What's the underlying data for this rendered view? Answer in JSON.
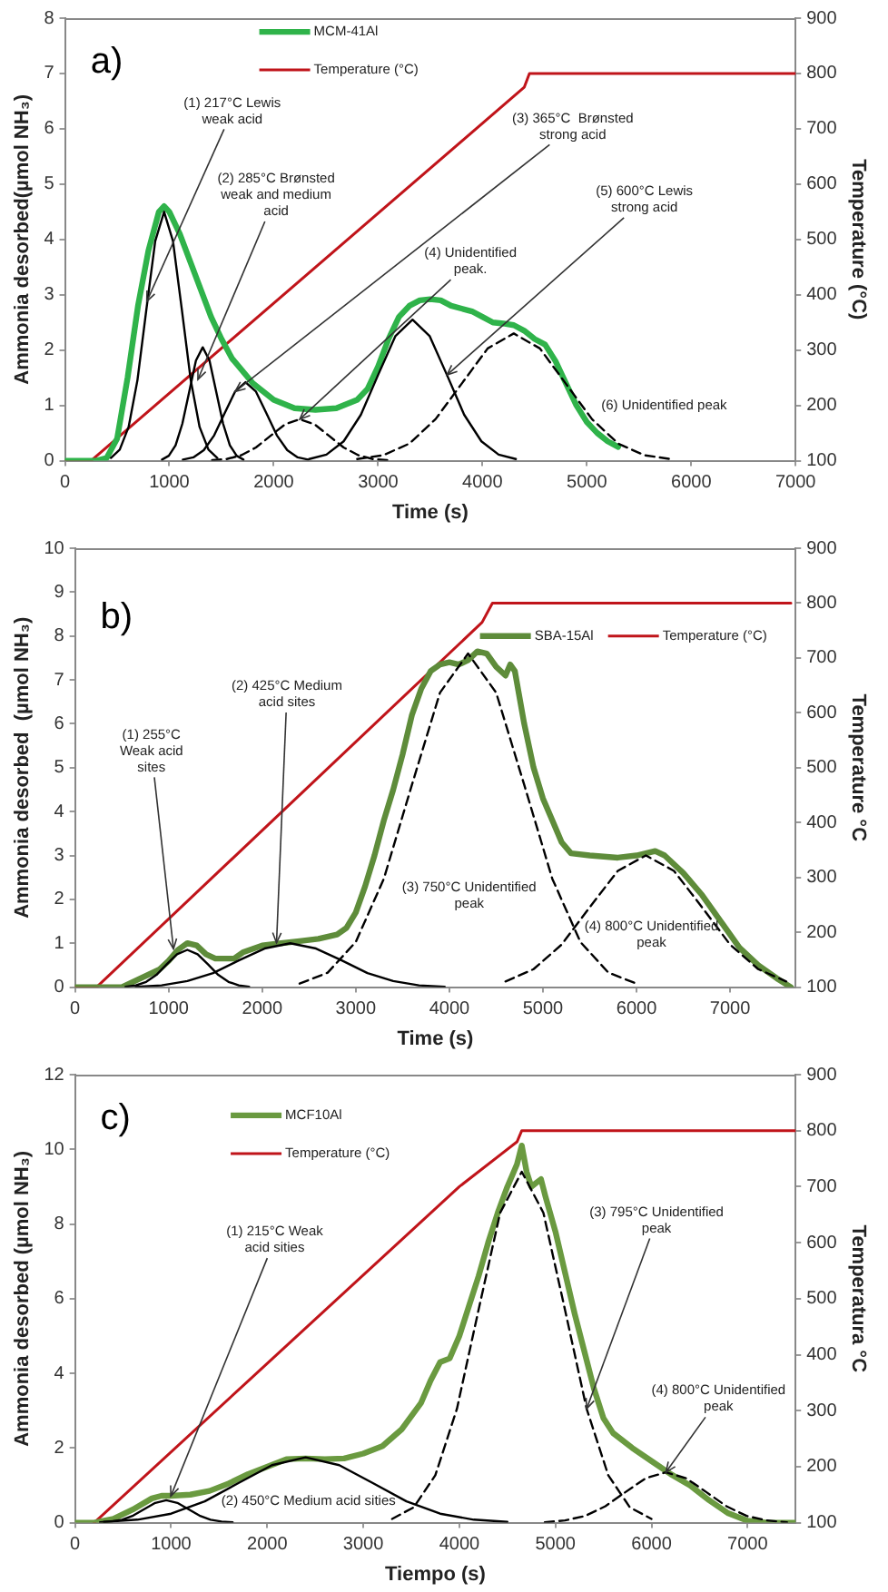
{
  "chart_data": [
    {
      "type": "line",
      "title": "a)",
      "xlabel": "Time (s)",
      "ylabel": "Ammonia desorbed(µmol NH₃)",
      "y2label": "Temperature (°C)",
      "xlim": [
        0,
        7000
      ],
      "xticks": [
        0,
        1000,
        2000,
        3000,
        4000,
        5000,
        6000,
        7000
      ],
      "ylim": [
        0,
        8
      ],
      "yticks": [
        0,
        1,
        2,
        3,
        4,
        5,
        6,
        7,
        8
      ],
      "y2lim": [
        100,
        900
      ],
      "y2ticks": [
        100,
        200,
        300,
        400,
        500,
        600,
        700,
        800,
        900
      ],
      "grid": false,
      "legend": "top",
      "marker": "none",
      "line_style": "solid",
      "series": [
        {
          "name": "MCM-41Al",
          "color": "#2fb34a",
          "x": [
            0,
            300,
            400,
            500,
            600,
            700,
            800,
            900,
            950,
            1000,
            1100,
            1200,
            1300,
            1400,
            1500,
            1600,
            1800,
            2000,
            2200,
            2400,
            2600,
            2800,
            2900,
            3000,
            3100,
            3200,
            3300,
            3400,
            3500,
            3600,
            3700,
            3800,
            3900,
            4000,
            4100,
            4200,
            4300,
            4400,
            4500,
            4600,
            4700,
            4800,
            4900,
            5000,
            5100,
            5200,
            5300
          ],
          "values": [
            0,
            0,
            0.05,
            0.4,
            1.5,
            2.8,
            3.8,
            4.5,
            4.6,
            4.5,
            4.1,
            3.6,
            3.1,
            2.6,
            2.2,
            1.85,
            1.4,
            1.1,
            0.95,
            0.92,
            0.95,
            1.1,
            1.3,
            1.7,
            2.2,
            2.6,
            2.8,
            2.9,
            2.92,
            2.9,
            2.8,
            2.75,
            2.7,
            2.6,
            2.5,
            2.48,
            2.45,
            2.35,
            2.2,
            2.1,
            1.8,
            1.4,
            1.0,
            0.7,
            0.5,
            0.35,
            0.25
          ]
        },
        {
          "name": "Temperature (°C)",
          "color": "#c0141a",
          "axis": "y2",
          "x": [
            0,
            250,
            4400,
            4450,
            7000
          ],
          "values": [
            100,
            100,
            775,
            800,
            800
          ]
        },
        {
          "color": "#000000",
          "x": [
            440,
            525,
            610,
            695,
            780,
            865,
            950,
            1035,
            1120,
            1205,
            1290,
            1375,
            1460
          ],
          "values": [
            0.05,
            0.2,
            0.61,
            1.46,
            2.73,
            3.97,
            4.5,
            3.97,
            2.73,
            1.46,
            0.61,
            0.2,
            0.05
          ]
        },
        {
          "color": "#000000",
          "x": [
            930,
            995,
            1060,
            1125,
            1190,
            1255,
            1320,
            1385,
            1450,
            1515,
            1580,
            1645,
            1710
          ],
          "values": [
            0.02,
            0.09,
            0.28,
            0.67,
            1.24,
            1.81,
            2.05,
            1.81,
            1.24,
            0.67,
            0.28,
            0.09,
            0.02
          ]
        },
        {
          "color": "#000000",
          "x": [
            1130,
            1230,
            1330,
            1430,
            1530,
            1630,
            1730,
            1830,
            1930,
            2030,
            2130,
            2230,
            2330
          ],
          "values": [
            0.02,
            0.06,
            0.19,
            0.46,
            0.86,
            1.25,
            1.42,
            1.25,
            0.86,
            0.46,
            0.19,
            0.06,
            0.02
          ]
        },
        {
          "color": "#000000",
          "line_style": "dashed",
          "x": [
            1410,
            1550,
            1690,
            1830,
            1970,
            2110,
            2250,
            2390,
            2530,
            2670,
            2810,
            2950,
            3090
          ],
          "values": [
            0.01,
            0.03,
            0.1,
            0.24,
            0.45,
            0.66,
            0.75,
            0.66,
            0.45,
            0.24,
            0.1,
            0.03,
            0.01
          ]
        },
        {
          "color": "#000000",
          "x": [
            2340,
            2505,
            2670,
            2835,
            3000,
            3165,
            3330,
            3495,
            3660,
            3825,
            3990,
            4155,
            4320
          ],
          "values": [
            0.03,
            0.11,
            0.35,
            0.83,
            1.55,
            2.25,
            2.55,
            2.25,
            1.55,
            0.83,
            0.35,
            0.11,
            0.03
          ]
        },
        {
          "color": "#000000",
          "line_style": "dashed",
          "x": [
            2800,
            3050,
            3300,
            3550,
            3800,
            4050,
            4300,
            4550,
            4800,
            5050,
            5300,
            5550,
            5800
          ],
          "values": [
            0.03,
            0.1,
            0.31,
            0.75,
            1.39,
            2.03,
            2.3,
            2.03,
            1.39,
            0.75,
            0.31,
            0.1,
            0.03
          ]
        }
      ],
      "annotations": [
        {
          "text": "(1) 217°C Lewis weak acid",
          "x": 784,
          "y": 2.88
        },
        {
          "text": "(2) 285°C Brønsted weak and medium acid",
          "x": 1274,
          "y": 1.47
        },
        {
          "text": "(3) 365°C  Brønsted strong acid",
          "x": 1630,
          "y": 1.25
        },
        {
          "text": "(4) Unidentified peak.",
          "x": 2250,
          "y": 0.75
        },
        {
          "text": "(5) 600°C Lewis strong acid",
          "x": 3660,
          "y": 1.55
        },
        "(6) Unidentified peak"
      ]
    },
    {
      "type": "line",
      "title": "b)",
      "xlabel": "Time (s)",
      "ylabel": "Ammonia desorbed  (µmol NH₃)",
      "y2label": "Temperature °C",
      "xlim": [
        0,
        7700
      ],
      "xticks": [
        0,
        1000,
        2000,
        3000,
        4000,
        5000,
        6000,
        7000
      ],
      "ylim": [
        0,
        10
      ],
      "yticks": [
        0,
        1,
        2,
        3,
        4,
        5,
        6,
        7,
        8,
        9,
        10
      ],
      "y2lim": [
        100,
        900
      ],
      "y2ticks": [
        100,
        200,
        300,
        400,
        500,
        600,
        700,
        800,
        900
      ],
      "grid": false,
      "legend": "top right",
      "marker": "none",
      "line_style": "solid",
      "series": [
        {
          "name": "SBA-15Al",
          "color": "#5e8c3a",
          "x": [
            0,
            500,
            700,
            900,
            1000,
            1100,
            1200,
            1300,
            1400,
            1500,
            1700,
            1800,
            2000,
            2200,
            2400,
            2600,
            2800,
            2900,
            3000,
            3100,
            3200,
            3300,
            3400,
            3500,
            3600,
            3700,
            3800,
            3900,
            4000,
            4100,
            4200,
            4300,
            4400,
            4500,
            4600,
            4650,
            4700,
            4800,
            4900,
            5000,
            5100,
            5200,
            5300,
            5500,
            5800,
            6000,
            6100,
            6200,
            6300,
            6500,
            6700,
            6900,
            7100,
            7300,
            7500,
            7650
          ],
          "values": [
            0,
            0,
            0.2,
            0.4,
            0.6,
            0.85,
            1.0,
            0.95,
            0.75,
            0.65,
            0.65,
            0.8,
            0.95,
            1.0,
            1.05,
            1.1,
            1.2,
            1.35,
            1.7,
            2.3,
            3.0,
            3.8,
            4.5,
            5.3,
            6.2,
            6.8,
            7.2,
            7.35,
            7.4,
            7.35,
            7.45,
            7.65,
            7.6,
            7.3,
            7.1,
            7.35,
            7.2,
            6.0,
            5.0,
            4.3,
            3.8,
            3.3,
            3.05,
            3.0,
            2.95,
            3.0,
            3.05,
            3.1,
            3.0,
            2.6,
            2.1,
            1.5,
            0.9,
            0.5,
            0.2,
            0
          ]
        },
        {
          "name": "Temperature (°C)",
          "color": "#c0141a",
          "axis": "y2",
          "x": [
            0,
            230,
            4350,
            4460,
            7650
          ],
          "values": [
            100,
            100,
            765,
            800,
            800
          ]
        },
        {
          "color": "#000000",
          "x": [
            540,
            650,
            760,
            870,
            980,
            1090,
            1200,
            1310,
            1420,
            1530,
            1640,
            1750,
            1860
          ],
          "values": [
            0.01,
            0.04,
            0.12,
            0.28,
            0.52,
            0.75,
            0.85,
            0.75,
            0.52,
            0.28,
            0.12,
            0.04,
            0.01
          ]
        },
        {
          "color": "#000000",
          "x": [
            650,
            925,
            1200,
            1475,
            1750,
            2025,
            2300,
            2575,
            2850,
            3125,
            3400,
            3675,
            3950
          ],
          "values": [
            0.01,
            0.04,
            0.14,
            0.32,
            0.61,
            0.88,
            1.0,
            0.88,
            0.61,
            0.32,
            0.14,
            0.04,
            0.01
          ]
        },
        {
          "color": "#000000",
          "line_style": "dashed",
          "x": [
            2400,
            2700,
            3000,
            3300,
            3600,
            3900,
            4200,
            4500,
            4800,
            5100,
            5400,
            5700,
            6000
          ],
          "values": [
            0.08,
            0.33,
            1.03,
            2.47,
            4.61,
            6.71,
            7.6,
            6.71,
            4.61,
            2.47,
            1.03,
            0.33,
            0.08
          ]
        },
        {
          "color": "#000000",
          "line_style": "dashed",
          "x": [
            4600,
            4900,
            5200,
            5500,
            5800,
            6100,
            6400,
            6700,
            7000,
            7300,
            7600
          ],
          "values": [
            0.13,
            0.41,
            0.97,
            1.82,
            2.65,
            3.0,
            2.65,
            1.82,
            0.97,
            0.41,
            0.13
          ]
        }
      ],
      "annotations": [
        {
          "text": "(1) 255°C Weak acid sites",
          "x": 1052,
          "y": 0.87
        },
        {
          "text": "(2) 425°C Medium acid sites",
          "x": 2153,
          "y": 1.01
        },
        "(3) 750°C Unidentified peak",
        "(4) 800°C Unidentified peak"
      ]
    },
    {
      "type": "line",
      "title": "c)",
      "xlabel": "Tiempo (s)",
      "ylabel": "Ammonia desorbed (µmol NH₃)",
      "y2label": "Temperatura °C",
      "xlim": [
        0,
        7500
      ],
      "xticks": [
        0,
        1000,
        2000,
        3000,
        4000,
        5000,
        6000,
        7000
      ],
      "ylim": [
        0,
        12
      ],
      "yticks": [
        0,
        2,
        4,
        6,
        8,
        10,
        12
      ],
      "y2lim": [
        100,
        900
      ],
      "y2ticks": [
        100,
        200,
        300,
        400,
        500,
        600,
        700,
        800,
        900
      ],
      "grid": false,
      "legend": "top left",
      "marker": "none",
      "line_style": "solid",
      "series": [
        {
          "name": "MCF10Al",
          "color": "#6a9a40",
          "x": [
            0,
            200,
            400,
            600,
            800,
            900,
            1000,
            1200,
            1400,
            1600,
            1800,
            2000,
            2200,
            2400,
            2600,
            2800,
            3000,
            3200,
            3400,
            3600,
            3700,
            3800,
            3900,
            4000,
            4100,
            4200,
            4300,
            4400,
            4500,
            4600,
            4650,
            4700,
            4750,
            4800,
            4850,
            4900,
            5000,
            5100,
            5200,
            5300,
            5400,
            5500,
            5600,
            5800,
            6000,
            6200,
            6400,
            6600,
            6800,
            7000,
            7200,
            7500
          ],
          "values": [
            0,
            0,
            0.1,
            0.35,
            0.65,
            0.72,
            0.72,
            0.75,
            0.85,
            1.05,
            1.3,
            1.5,
            1.7,
            1.72,
            1.7,
            1.72,
            1.85,
            2.05,
            2.5,
            3.2,
            3.8,
            4.3,
            4.4,
            5.0,
            5.8,
            6.6,
            7.5,
            8.3,
            9.0,
            9.6,
            10.1,
            9.4,
            9.0,
            9.1,
            9.2,
            8.7,
            7.8,
            6.7,
            5.6,
            4.6,
            3.6,
            2.8,
            2.4,
            2.0,
            1.65,
            1.3,
            1.0,
            0.6,
            0.25,
            0.05,
            0,
            0
          ]
        },
        {
          "name": "Temperature (°C)",
          "color": "#c0141a",
          "axis": "y2",
          "x": [
            200,
            4000,
            4600,
            4650,
            7500
          ],
          "values": [
            100,
            700,
            780,
            800,
            800
          ]
        },
        {
          "color": "#000000",
          "x": [
            260,
            375,
            490,
            605,
            720,
            835,
            950,
            1065,
            1180,
            1295,
            1410,
            1525,
            1640
          ],
          "values": [
            0.01,
            0.03,
            0.08,
            0.19,
            0.36,
            0.53,
            0.6,
            0.53,
            0.36,
            0.19,
            0.08,
            0.03,
            0.01
          ]
        },
        {
          "color": "#000000",
          "x": [
            300,
            650,
            1000,
            1350,
            1700,
            2050,
            2400,
            2750,
            3100,
            3450,
            3800,
            4150,
            4500
          ],
          "values": [
            0.02,
            0.08,
            0.24,
            0.57,
            1.06,
            1.54,
            1.75,
            1.54,
            1.06,
            0.57,
            0.24,
            0.08,
            0.02
          ]
        },
        {
          "color": "#000000",
          "line_style": "dashed",
          "x": [
            3300,
            3525,
            3750,
            3975,
            4200,
            4425,
            4650,
            4875,
            5100,
            5325,
            5550,
            5775,
            6000
          ],
          "values": [
            0.1,
            0.41,
            1.27,
            3.05,
            5.7,
            8.3,
            9.4,
            8.3,
            5.7,
            3.05,
            1.27,
            0.41,
            0.1
          ]
        },
        {
          "color": "#000000",
          "line_style": "dashed",
          "x": [
            4890,
            5100,
            5310,
            5520,
            5730,
            5940,
            6150,
            6360,
            6570,
            6780,
            6990,
            7200,
            7410
          ],
          "values": [
            0.01,
            0.06,
            0.18,
            0.44,
            0.82,
            1.19,
            1.35,
            1.19,
            0.82,
            0.44,
            0.18,
            0.06,
            0.01
          ]
        }
      ],
      "annotations": [
        {
          "text": "(1) 215°C Weak acid sities",
          "x": 997,
          "y": 0.71
        },
        "(2) 450°C Medium acid sities",
        {
          "text": "(3) 795°C Unidentified peak",
          "x": 5325,
          "y": 3.05
        },
        {
          "text": "(4) 800°C Unidentified peak",
          "x": 6150,
          "y": 1.35
        }
      ]
    }
  ]
}
